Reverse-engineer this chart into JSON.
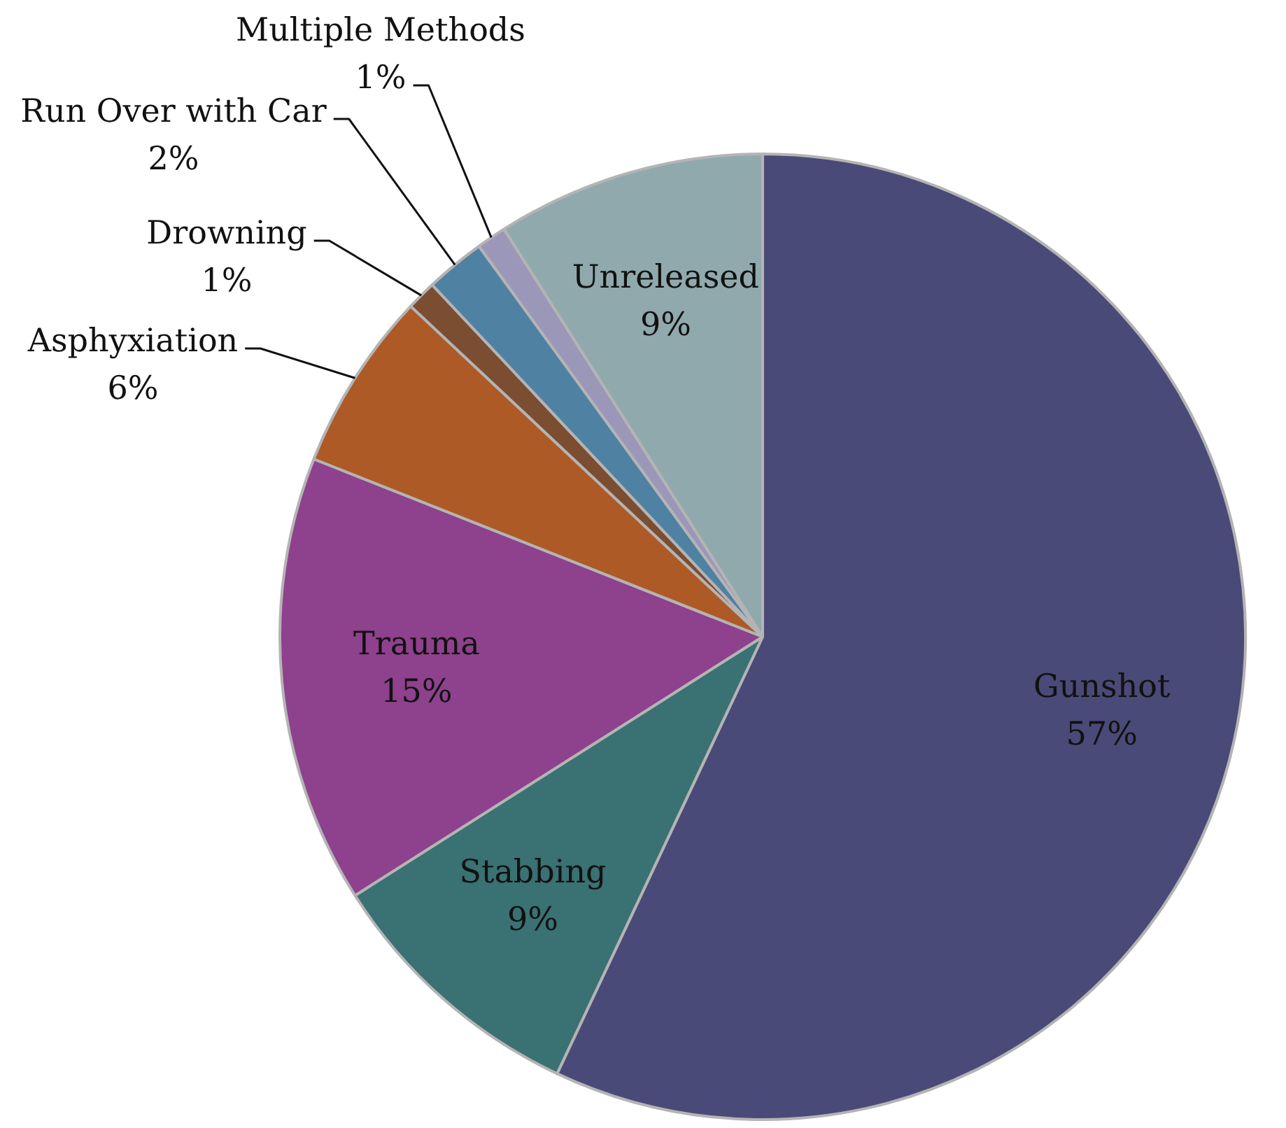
{
  "chart_data": {
    "type": "pie",
    "categories": [
      "Gunshot",
      "Stabbing",
      "Trauma",
      "Asphyxiation",
      "Drowning",
      "Run Over with Car",
      "Multiple Methods",
      "Unreleased"
    ],
    "values": [
      57,
      9,
      15,
      6,
      1,
      2,
      1,
      9
    ],
    "colors": [
      "#4a4a78",
      "#3a7173",
      "#8e418c",
      "#ad5a27",
      "#7b4d31",
      "#4f81a3",
      "#9a97b8",
      "#90a9ad"
    ],
    "value_labels": [
      "57%",
      "9%",
      "15%",
      "6%",
      "1%",
      "2%",
      "1%",
      "9%"
    ]
  }
}
